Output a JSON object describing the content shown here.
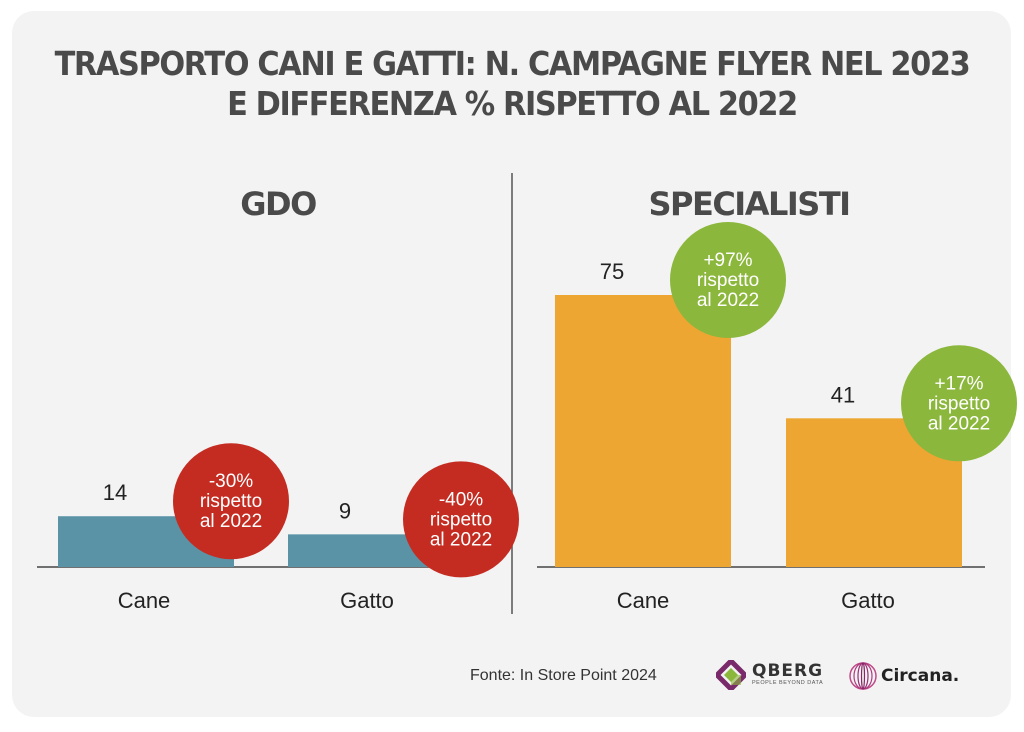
{
  "title": {
    "line1": "TRASPORTO CANI E GATTI: N. CAMPAGNE FLYER NEL 2023",
    "line2": "E DIFFERENZA % RISPETTO AL 2022"
  },
  "chart_data": [
    {
      "type": "bar",
      "title": "GDO",
      "categories": [
        "Cane",
        "Gatto"
      ],
      "values": [
        14,
        9
      ],
      "badges": [
        {
          "line1": "-30%",
          "line2": "rispetto",
          "line3": "al 2022"
        },
        {
          "line1": "-40%",
          "line2": "rispetto",
          "line3": "al 2022"
        }
      ],
      "bar_color": "#5a93a6",
      "badge_color": "#c42c22",
      "ylim": [
        0,
        90
      ]
    },
    {
      "type": "bar",
      "title": "SPECIALISTI",
      "categories": [
        "Cane",
        "Gatto"
      ],
      "values": [
        75,
        41
      ],
      "badges": [
        {
          "line1": "+97%",
          "line2": "rispetto",
          "line3": "al 2022"
        },
        {
          "line1": "+17%",
          "line2": "rispetto",
          "line3": "al 2022"
        }
      ],
      "bar_color": "#eda632",
      "badge_color": "#8cb73d",
      "ylim": [
        0,
        90
      ]
    }
  ],
  "footer": {
    "source": "Fonte: In Store Point 2024",
    "qberg_name": "QBERG",
    "qberg_tagline": "PEOPLE BEYOND DATA",
    "circana_name": "Circana."
  }
}
